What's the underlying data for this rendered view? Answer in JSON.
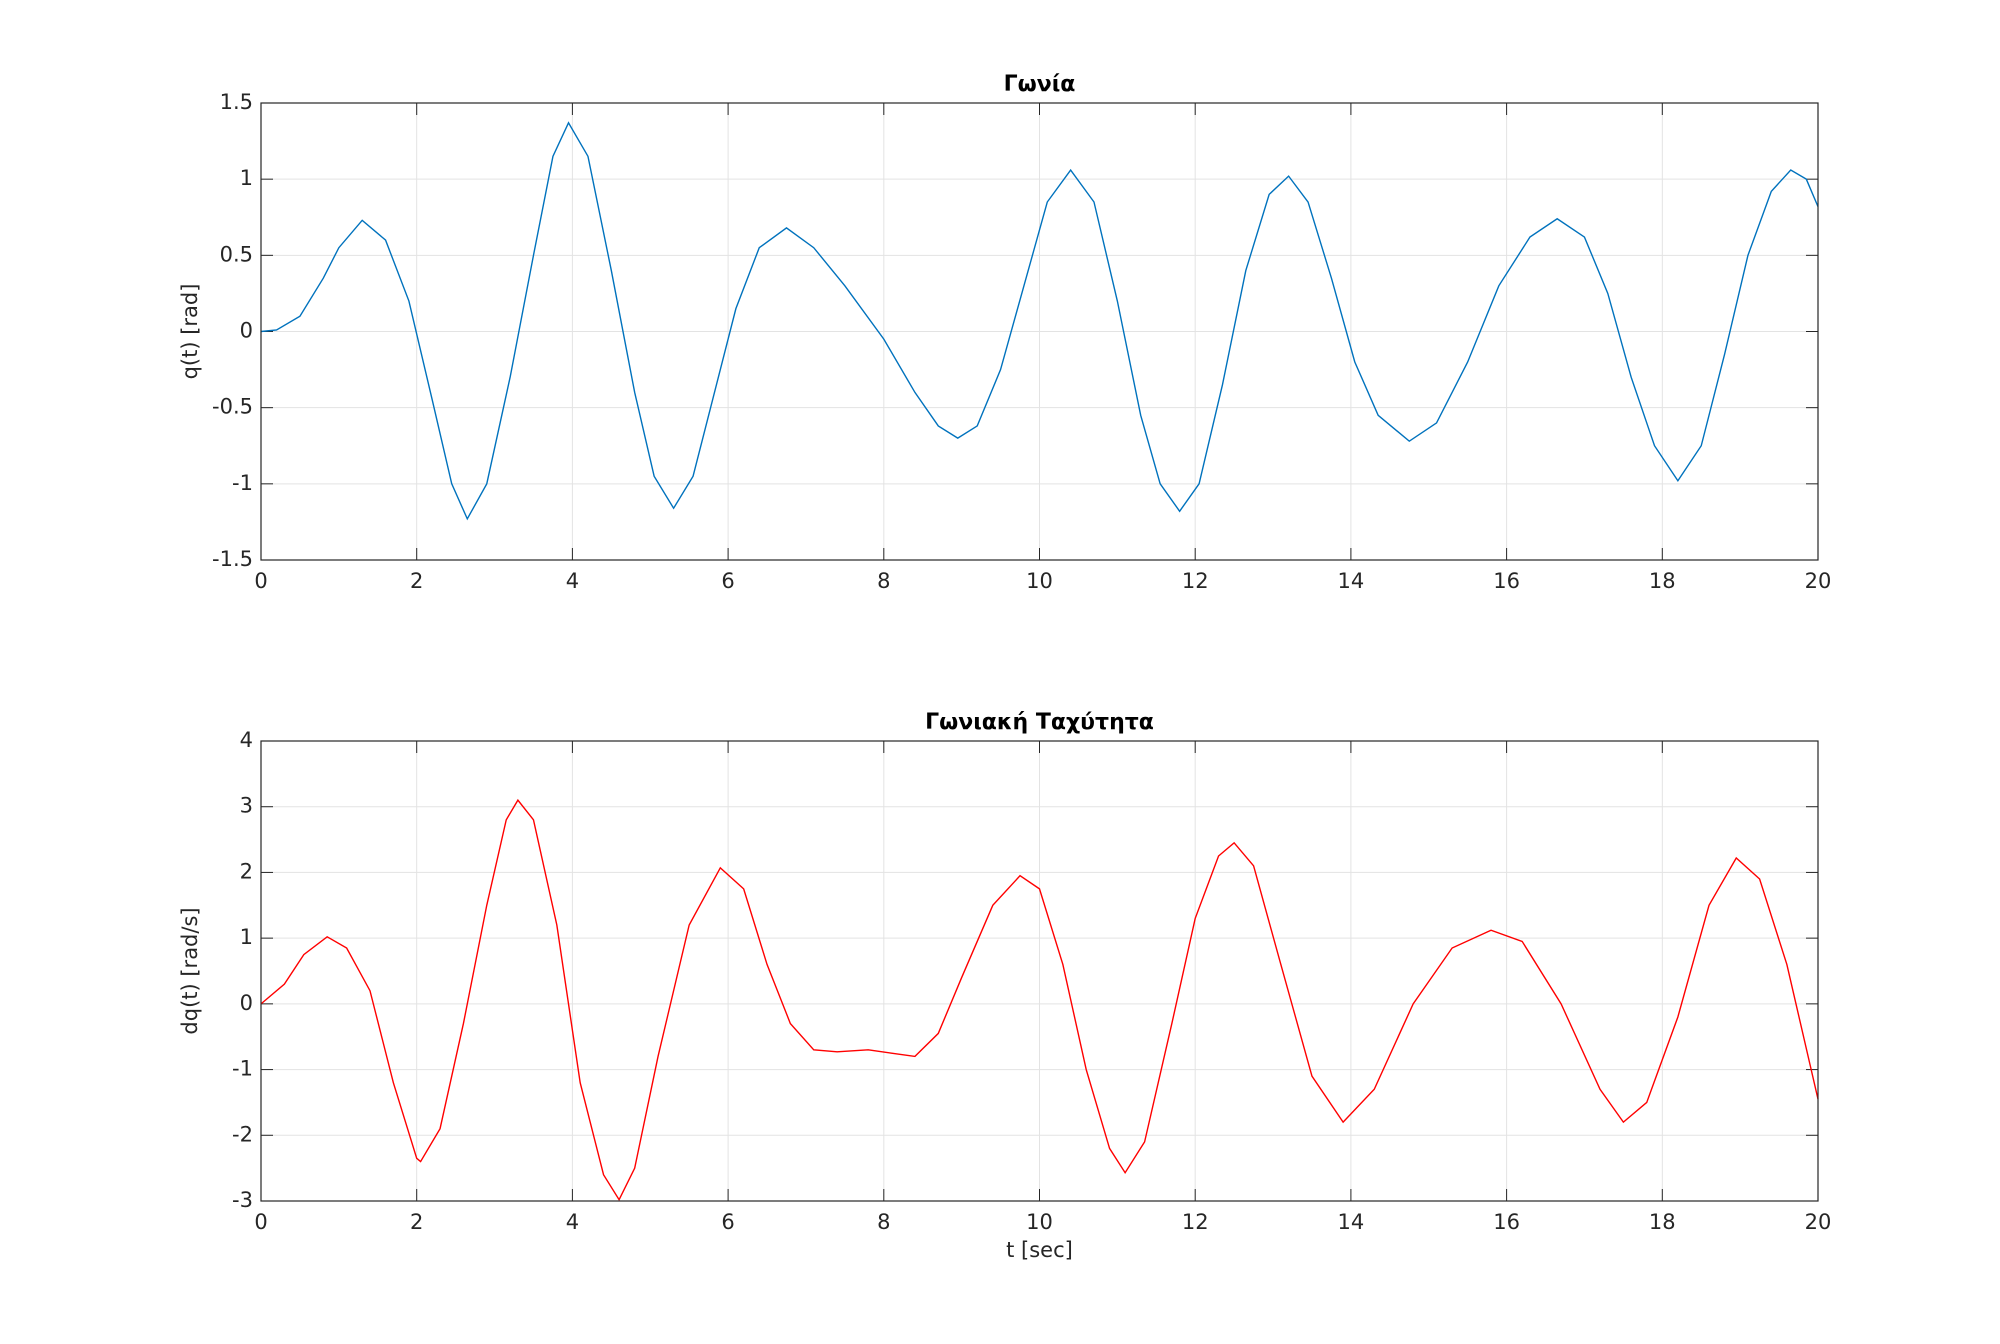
{
  "chart_data": [
    {
      "type": "line",
      "title": "Γωνία",
      "ylabel": "q(t) [rad]",
      "x": [
        0,
        0.2,
        0.5,
        0.8,
        1.0,
        1.3,
        1.6,
        1.9,
        2.2,
        2.45,
        2.65,
        2.9,
        3.2,
        3.5,
        3.75,
        3.95,
        4.2,
        4.5,
        4.8,
        5.05,
        5.3,
        5.55,
        5.8,
        6.1,
        6.4,
        6.75,
        7.1,
        7.5,
        8.0,
        8.4,
        8.7,
        8.95,
        9.2,
        9.5,
        9.8,
        10.1,
        10.4,
        10.7,
        11.0,
        11.3,
        11.55,
        11.8,
        12.05,
        12.35,
        12.65,
        12.95,
        13.2,
        13.45,
        13.75,
        14.05,
        14.35,
        14.75,
        15.1,
        15.5,
        15.9,
        16.3,
        16.65,
        17.0,
        17.3,
        17.6,
        17.9,
        18.2,
        18.5,
        18.8,
        19.1,
        19.4,
        19.65,
        19.85,
        20
      ],
      "values": [
        0,
        0.01,
        0.1,
        0.35,
        0.55,
        0.73,
        0.6,
        0.2,
        -0.45,
        -1.0,
        -1.23,
        -1.0,
        -0.3,
        0.5,
        1.15,
        1.37,
        1.15,
        0.4,
        -0.4,
        -0.95,
        -1.16,
        -0.95,
        -0.45,
        0.15,
        0.55,
        0.68,
        0.55,
        0.3,
        -0.05,
        -0.4,
        -0.62,
        -0.7,
        -0.62,
        -0.25,
        0.3,
        0.85,
        1.06,
        0.85,
        0.2,
        -0.55,
        -1.0,
        -1.18,
        -1.0,
        -0.35,
        0.4,
        0.9,
        1.02,
        0.85,
        0.35,
        -0.2,
        -0.55,
        -0.72,
        -0.6,
        -0.2,
        0.3,
        0.62,
        0.74,
        0.62,
        0.25,
        -0.3,
        -0.75,
        -0.98,
        -0.75,
        -0.15,
        0.5,
        0.92,
        1.06,
        1.0,
        0.82
      ],
      "color": "#0072bd",
      "xlim": [
        0,
        20
      ],
      "xticks": [
        0,
        2,
        4,
        6,
        8,
        10,
        12,
        14,
        16,
        18,
        20
      ],
      "ylim": [
        -1.5,
        1.5
      ],
      "yticks": [
        -1.5,
        -1,
        -0.5,
        0,
        0.5,
        1,
        1.5
      ],
      "grid": true
    },
    {
      "type": "line",
      "title": "Γωνιακή Ταχύτητα",
      "ylabel": "dq(t) [rad/s]",
      "xlabel": "t [sec]",
      "x": [
        0,
        0.3,
        0.55,
        0.85,
        1.1,
        1.4,
        1.7,
        2.0,
        2.05,
        2.3,
        2.6,
        2.9,
        3.15,
        3.3,
        3.5,
        3.8,
        4.1,
        4.4,
        4.6,
        4.8,
        5.1,
        5.5,
        5.9,
        6.2,
        6.5,
        6.8,
        7.1,
        7.4,
        7.8,
        8.1,
        8.4,
        8.7,
        9.0,
        9.4,
        9.75,
        10.0,
        10.3,
        10.6,
        10.9,
        11.1,
        11.35,
        11.7,
        12.0,
        12.3,
        12.5,
        12.75,
        13.1,
        13.5,
        13.9,
        14.3,
        14.8,
        15.3,
        15.8,
        16.2,
        16.7,
        17.2,
        17.5,
        17.8,
        18.2,
        18.6,
        18.95,
        19.25,
        19.6,
        20
      ],
      "values": [
        0,
        0.3,
        0.75,
        1.02,
        0.85,
        0.2,
        -1.2,
        -2.35,
        -2.4,
        -1.9,
        -0.3,
        1.5,
        2.8,
        3.1,
        2.8,
        1.2,
        -1.2,
        -2.6,
        -2.98,
        -2.5,
        -0.8,
        1.2,
        2.07,
        1.75,
        0.6,
        -0.3,
        -0.7,
        -0.73,
        -0.7,
        -0.75,
        -0.8,
        -0.45,
        0.4,
        1.5,
        1.95,
        1.75,
        0.6,
        -1.0,
        -2.2,
        -2.57,
        -2.1,
        -0.3,
        1.3,
        2.25,
        2.45,
        2.1,
        0.6,
        -1.1,
        -1.8,
        -1.3,
        0.0,
        0.85,
        1.12,
        0.95,
        0.0,
        -1.3,
        -1.8,
        -1.5,
        -0.2,
        1.5,
        2.22,
        1.9,
        0.6,
        -1.45
      ],
      "color": "#ff0000",
      "xlim": [
        0,
        20
      ],
      "xticks": [
        0,
        2,
        4,
        6,
        8,
        10,
        12,
        14,
        16,
        18,
        20
      ],
      "ylim": [
        -3,
        4
      ],
      "yticks": [
        -3,
        -2,
        -1,
        0,
        1,
        2,
        3,
        4
      ],
      "grid": true
    }
  ]
}
